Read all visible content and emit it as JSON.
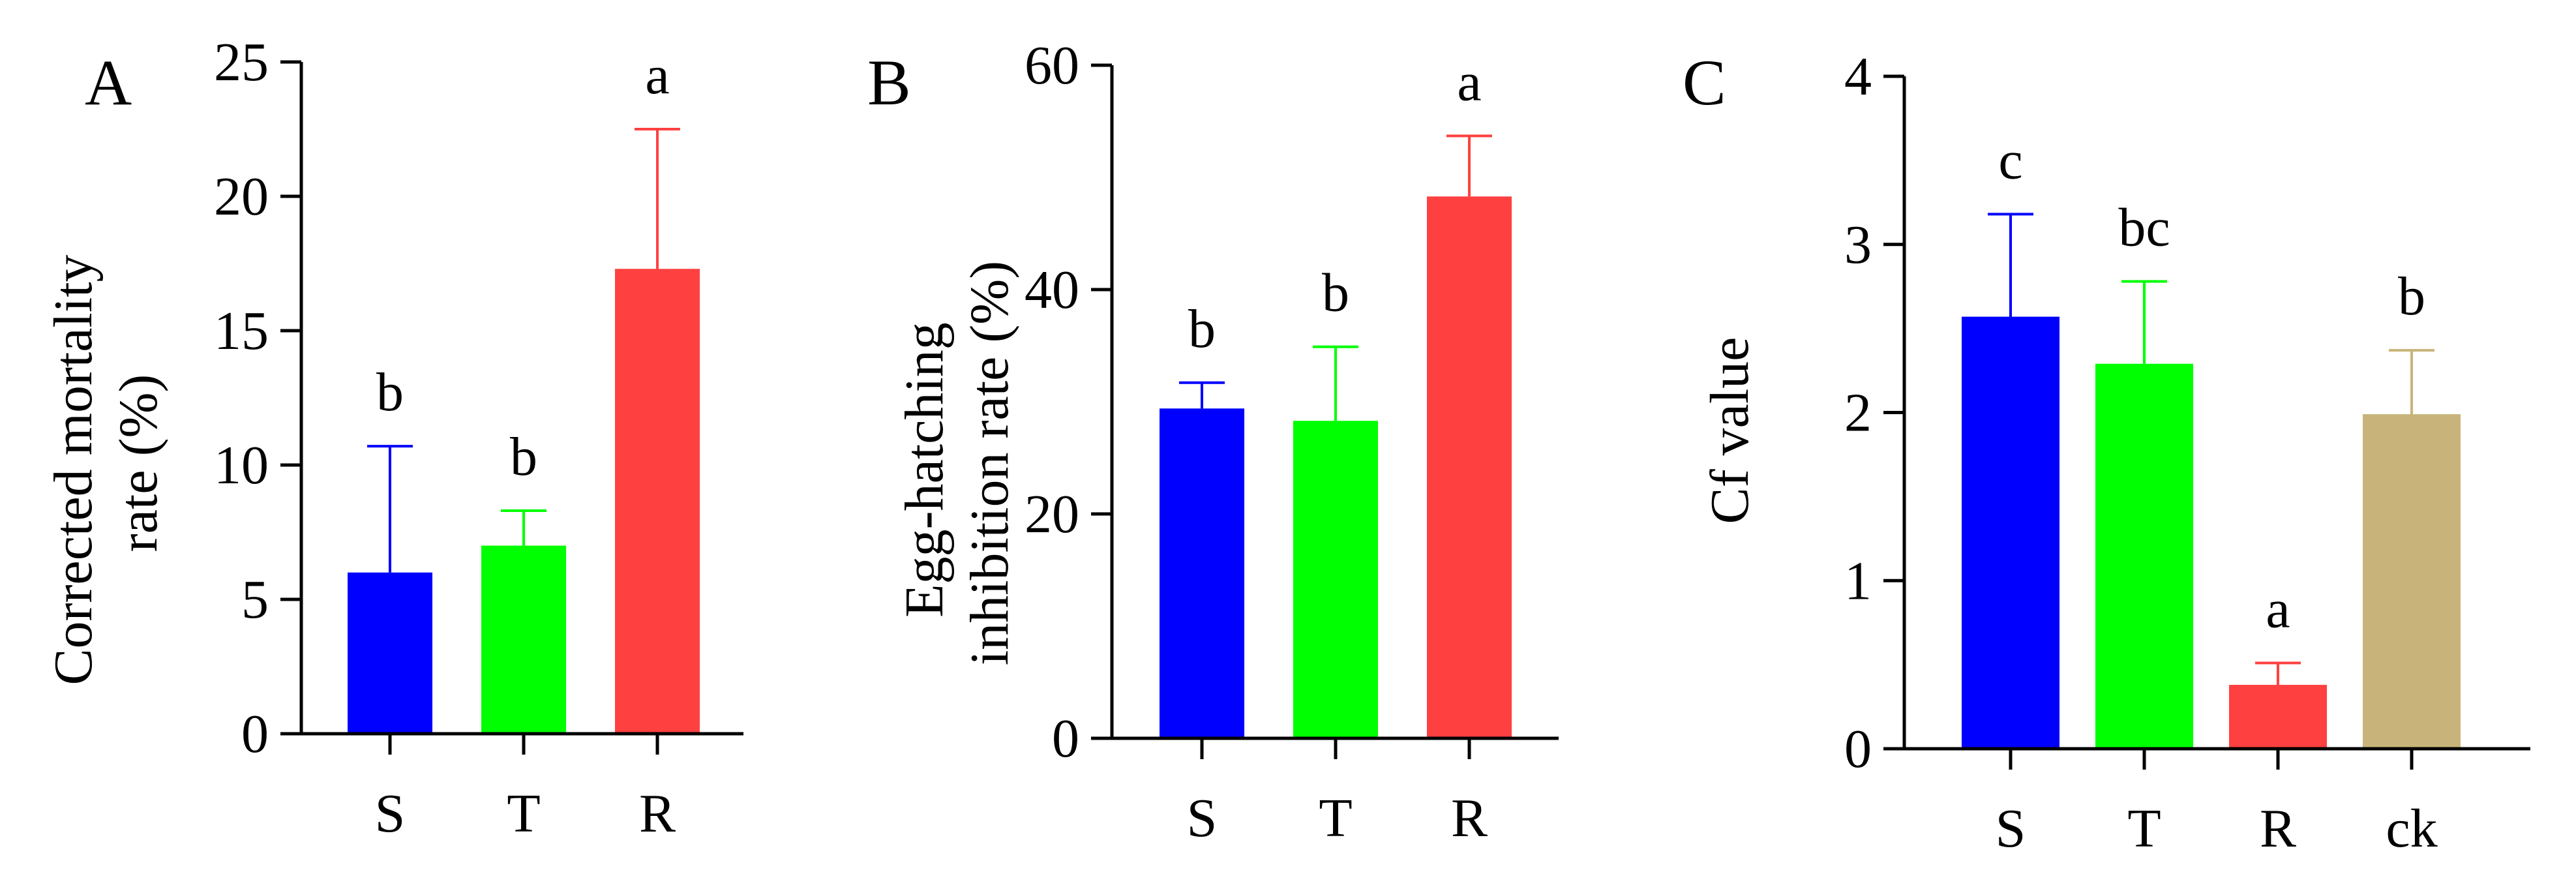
{
  "chart_data": [
    {
      "panel": "A",
      "type": "bar",
      "categories": [
        "S",
        "T",
        "R"
      ],
      "values": [
        6.0,
        7.0,
        17.3
      ],
      "errors": [
        4.7,
        1.3,
        5.2
      ],
      "colors": [
        "#0000ff",
        "#00ff00",
        "#ff4040"
      ],
      "significance": [
        "b",
        "b",
        "a"
      ],
      "ylabel_lines": [
        "Corrected mortality",
        "rate (%)"
      ],
      "ylim": [
        0,
        25
      ],
      "yticks": [
        0,
        5,
        10,
        15,
        20,
        25
      ]
    },
    {
      "panel": "B",
      "type": "bar",
      "categories": [
        "S",
        "T",
        "R"
      ],
      "values": [
        29.4,
        28.3,
        48.3
      ],
      "errors": [
        2.3,
        6.6,
        5.4
      ],
      "colors": [
        "#0000ff",
        "#00ff00",
        "#ff4040"
      ],
      "significance": [
        "b",
        "b",
        "a"
      ],
      "ylabel_lines": [
        "Egg-hatching",
        "inhibition rate  (%)"
      ],
      "ylim": [
        0,
        60
      ],
      "yticks": [
        0,
        20,
        40,
        60
      ]
    },
    {
      "panel": "C",
      "type": "bar",
      "categories": [
        "S",
        "T",
        "R",
        "ck"
      ],
      "values": [
        2.57,
        2.29,
        0.38,
        1.99
      ],
      "errors": [
        0.61,
        0.49,
        0.13,
        0.38
      ],
      "colors": [
        "#0000ff",
        "#00ff00",
        "#ff4040",
        "#c8b47a"
      ],
      "significance": [
        "c",
        "bc",
        "a",
        "b"
      ],
      "ylabel_lines": [
        "Cf  value"
      ],
      "ylim": [
        0,
        4
      ],
      "yticks": [
        0,
        1,
        2,
        3,
        4
      ]
    }
  ]
}
